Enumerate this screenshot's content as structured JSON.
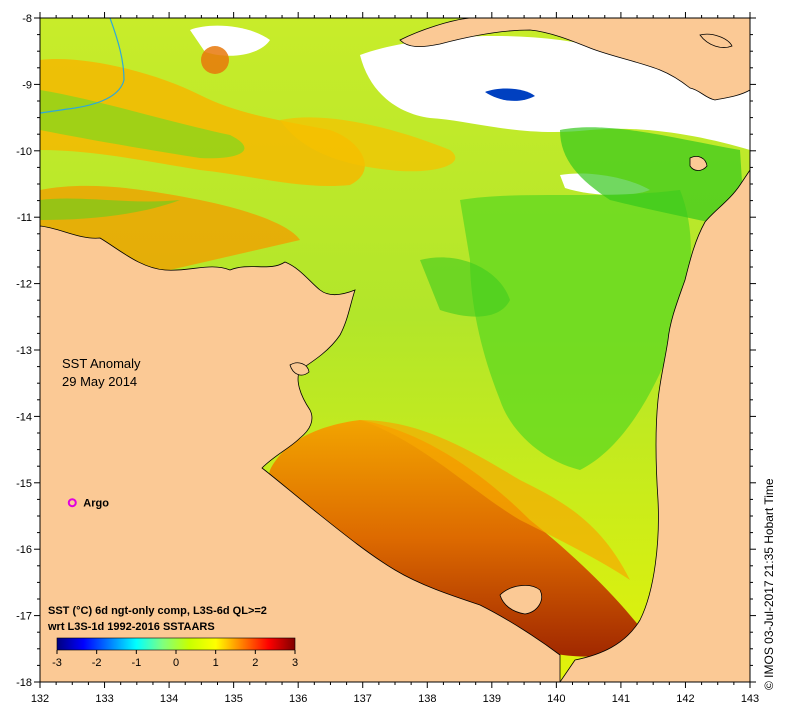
{
  "title_lines": [
    "SST Anomaly",
    "29 May 2014"
  ],
  "credit": "© IMOS 03-Jul-2017 21:35 Hobart Time",
  "marker": {
    "label": "Argo",
    "lon": 132.5,
    "lat": -15.3,
    "color": "#e000e0"
  },
  "legend": {
    "lines": [
      "SST (°C) 6d ngt-only comp, L3S-6d QL>=2",
      "wrt L3S-1d 1992-2016 SSTAARS"
    ],
    "ticks": [
      "-3",
      "-2",
      "-1",
      "0",
      "1",
      "2",
      "3"
    ],
    "min": -3,
    "max": 3,
    "colors": [
      "#00007f",
      "#0000ff",
      "#007fff",
      "#00ffff",
      "#7fff7f",
      "#c8ff00",
      "#ffff00",
      "#ff7f00",
      "#ff0000",
      "#7f0000"
    ]
  },
  "axes": {
    "lon_min": 132,
    "lon_max": 143,
    "lat_min": -18,
    "lat_max": -8,
    "lon_ticks": [
      "132",
      "133",
      "134",
      "135",
      "136",
      "137",
      "138",
      "139",
      "140",
      "141",
      "142",
      "143"
    ],
    "lat_ticks": [
      "-8",
      "-9",
      "-10",
      "-11",
      "-12",
      "-13",
      "-14",
      "-15",
      "-16",
      "-17",
      "-18"
    ]
  },
  "colors": {
    "land": "#fbc995",
    "no_data": "#ffffff",
    "coast": "#000000"
  }
}
